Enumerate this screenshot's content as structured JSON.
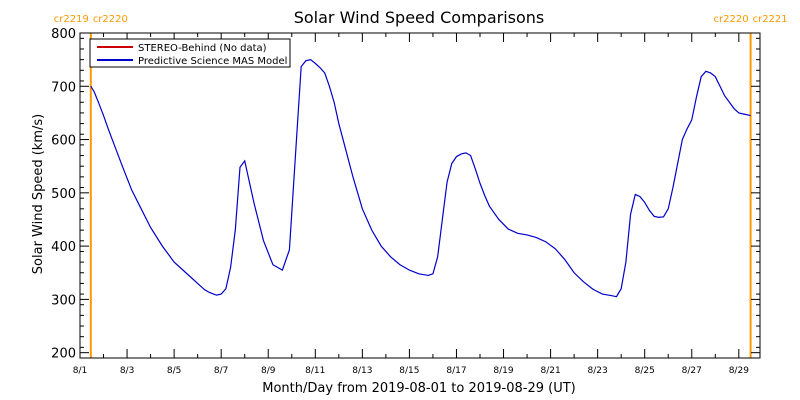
{
  "chart_data": {
    "type": "line",
    "title": "Solar Wind Speed Comparisons",
    "xlabel": "Month/Day from 2019-08-01 to 2019-08-29 (UT)",
    "ylabel": "Solar Wind Speed (km/s)",
    "ylim": [
      190,
      800
    ],
    "xlim": [
      1,
      29.9
    ],
    "y_ticks": [
      200,
      300,
      400,
      500,
      600,
      700,
      800
    ],
    "x_ticks": [
      {
        "value": 1,
        "label": "8/1"
      },
      {
        "value": 3,
        "label": "8/3"
      },
      {
        "value": 5,
        "label": "8/5"
      },
      {
        "value": 7,
        "label": "8/7"
      },
      {
        "value": 9,
        "label": "8/9"
      },
      {
        "value": 11,
        "label": "8/11"
      },
      {
        "value": 13,
        "label": "8/13"
      },
      {
        "value": 15,
        "label": "8/15"
      },
      {
        "value": 17,
        "label": "8/17"
      },
      {
        "value": 19,
        "label": "8/19"
      },
      {
        "value": 21,
        "label": "8/21"
      },
      {
        "value": 23,
        "label": "8/23"
      },
      {
        "value": 25,
        "label": "8/25"
      },
      {
        "value": 27,
        "label": "8/27"
      },
      {
        "value": 29,
        "label": "8/29"
      }
    ],
    "legend": {
      "placement": "top-left",
      "entries": [
        {
          "label": "STEREO-Behind (No data)",
          "color": "#cc0000"
        },
        {
          "label": "Predictive Science MAS Model",
          "color": "#0000cc"
        }
      ]
    },
    "carrington_markers": [
      {
        "x": 1.46,
        "color": "#ff9900",
        "label_left": "cr2219",
        "label_right": "cr2220"
      },
      {
        "x": 29.5,
        "color": "#ff9900",
        "label_left": "cr2220",
        "label_right": "cr2221"
      }
    ],
    "series": [
      {
        "name": "Predictive Science MAS Model",
        "color": "#0000cc",
        "x": [
          1.46,
          1.6,
          1.8,
          2.0,
          2.2,
          2.5,
          2.8,
          3.2,
          3.6,
          4.0,
          4.5,
          5.0,
          5.5,
          6.0,
          6.3,
          6.5,
          6.8,
          7.0,
          7.2,
          7.4,
          7.6,
          7.8,
          8.0,
          8.4,
          8.8,
          9.2,
          9.6,
          9.9,
          10.2,
          10.4,
          10.6,
          10.8,
          11.0,
          11.2,
          11.4,
          11.6,
          11.8,
          12.0,
          12.3,
          12.6,
          13.0,
          13.4,
          13.8,
          14.2,
          14.6,
          15.0,
          15.4,
          15.8,
          16.0,
          16.2,
          16.4,
          16.6,
          16.8,
          17.0,
          17.2,
          17.4,
          17.6,
          17.8,
          18.0,
          18.2,
          18.4,
          18.8,
          19.2,
          19.6,
          20.0,
          20.4,
          20.8,
          21.2,
          21.6,
          22.0,
          22.4,
          22.8,
          23.2,
          23.6,
          23.8,
          24.0,
          24.2,
          24.4,
          24.6,
          24.8,
          25.0,
          25.2,
          25.4,
          25.6,
          25.8,
          26.0,
          26.2,
          26.4,
          26.6,
          26.8,
          27.0,
          27.2,
          27.4,
          27.6,
          27.8,
          28.0,
          28.2,
          28.4,
          28.6,
          28.8,
          29.0,
          29.2,
          29.5
        ],
        "values": [
          700,
          690,
          668,
          645,
          620,
          585,
          550,
          505,
          470,
          435,
          400,
          370,
          350,
          330,
          318,
          313,
          308,
          310,
          320,
          360,
          430,
          548,
          560,
          480,
          410,
          365,
          355,
          393,
          600,
          737,
          748,
          750,
          743,
          735,
          725,
          700,
          670,
          630,
          580,
          530,
          470,
          430,
          400,
          380,
          365,
          355,
          348,
          345,
          348,
          380,
          450,
          520,
          555,
          568,
          573,
          575,
          570,
          545,
          518,
          495,
          475,
          450,
          432,
          424,
          421,
          416,
          408,
          395,
          375,
          350,
          333,
          319,
          310,
          307,
          305,
          320,
          370,
          460,
          497,
          493,
          482,
          467,
          456,
          454,
          455,
          470,
          510,
          555,
          600,
          620,
          637,
          680,
          718,
          728,
          725,
          718,
          700,
          682,
          670,
          658,
          650,
          648,
          645
        ]
      }
    ]
  }
}
